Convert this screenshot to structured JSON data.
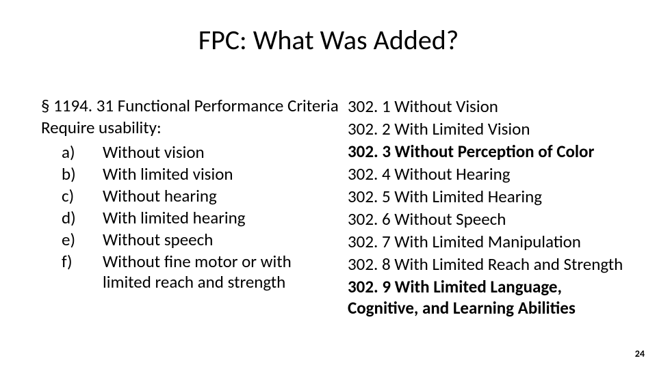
{
  "title": "FPC:  What Was Added?",
  "left": {
    "intro1": "§ 1194. 31 Functional Performance Criteria",
    "intro2": "Require usability:",
    "items": [
      {
        "label": "a)",
        "text": "Without vision"
      },
      {
        "label": "b)",
        "text": "With limited vision"
      },
      {
        "label": "c)",
        "text": "Without hearing"
      },
      {
        "label": "d)",
        "text": "With limited hearing"
      },
      {
        "label": "e)",
        "text": "Without speech"
      },
      {
        "label": "f)",
        "text": "Without fine motor or with limited reach and strength"
      }
    ]
  },
  "right": {
    "items": [
      {
        "text": "302. 1 Without Vision",
        "bold": false
      },
      {
        "text": "302. 2 With Limited Vision",
        "bold": false
      },
      {
        "text": "302. 3 Without Perception of Color",
        "bold": true
      },
      {
        "text": "302. 4 Without Hearing",
        "bold": false
      },
      {
        "text": "302. 5 With Limited Hearing",
        "bold": false
      },
      {
        "text": "302. 6 Without Speech",
        "bold": false
      },
      {
        "text": "302. 7 With Limited Manipulation",
        "bold": false
      },
      {
        "text": "302. 8 With Limited Reach and Strength",
        "bold": false
      },
      {
        "text": "302. 9 With Limited Language, Cognitive, and Learning Abilities",
        "bold": true
      }
    ]
  },
  "page_number": "24",
  "style": {
    "background_color": "#ffffff",
    "text_color": "#000000",
    "title_fontsize": 40,
    "body_fontsize": 25,
    "page_num_fontsize": 14,
    "font_family": "Calibri"
  }
}
